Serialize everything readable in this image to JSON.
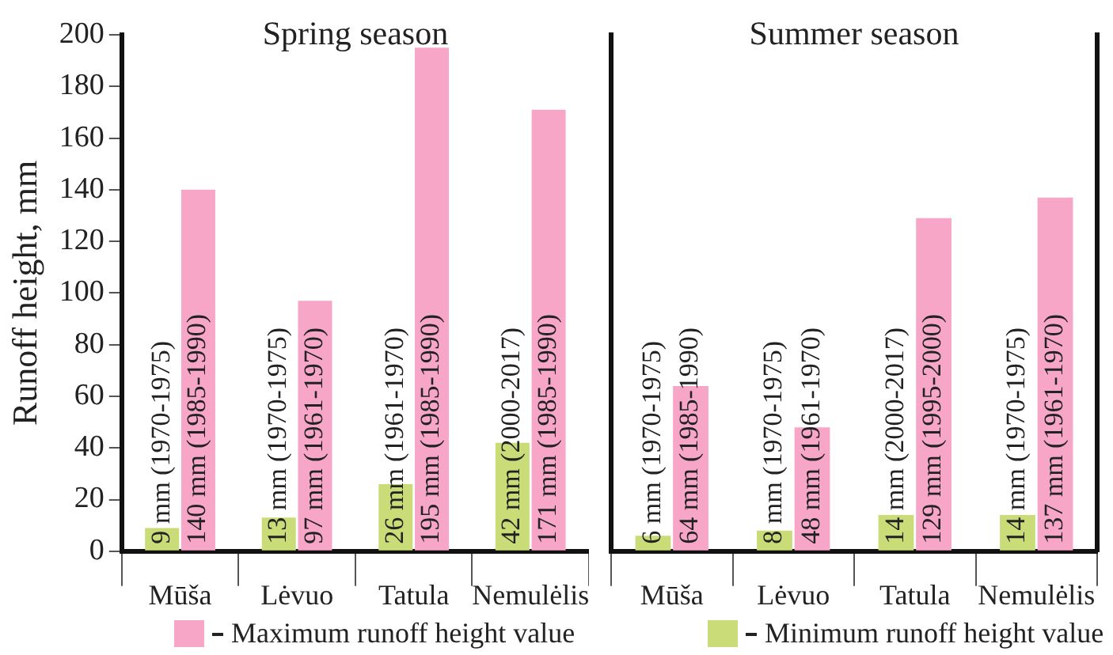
{
  "chart_data": [
    {
      "type": "bar",
      "title": "Spring season",
      "ylabel": "Runoff height, mm",
      "categories": [
        "Mūša",
        "Lėvuo",
        "Tatula",
        "Nemulėlis"
      ],
      "ylim": [
        0,
        200
      ],
      "yticks": [
        0,
        20,
        40,
        60,
        80,
        100,
        120,
        140,
        160,
        180,
        200
      ],
      "grid": false,
      "legend": "bottom",
      "series": [
        {
          "name": "Minimum runoff height value",
          "color": "#c9dc78",
          "values": [
            9,
            13,
            26,
            42
          ],
          "value_labels": [
            "9 mm (1970-1975)",
            "13 mm (1970-1975)",
            "26 mm (1961-1970)",
            "42 mm (2000-2017)"
          ]
        },
        {
          "name": "Maximum runoff height value",
          "color": "#f7a6c8",
          "values": [
            140,
            97,
            195,
            171
          ],
          "value_labels": [
            "140 mm (1985-1990)",
            "97 mm (1961-1970)",
            "195 mm (1985-1990)",
            "171 mm (1985-1990)"
          ]
        }
      ]
    },
    {
      "type": "bar",
      "title": "Summer season",
      "categories": [
        "Mūša",
        "Lėvuo",
        "Tatula",
        "Nemulėlis"
      ],
      "ylim": [
        0,
        200
      ],
      "yticks": [
        0,
        20,
        40,
        60,
        80,
        100,
        120,
        140,
        160,
        180,
        200
      ],
      "grid": false,
      "tick_labels": "x",
      "series": [
        {
          "color": "#c9dc78",
          "values": [
            6,
            8,
            14,
            14
          ],
          "value_labels": [
            "6 mm (1970-1975)",
            "8 mm (1970-1975)",
            "14 mm (2000-2017)",
            "14 mm (1970-1975)"
          ]
        },
        {
          "color": "#f7a6c8",
          "values": [
            64,
            48,
            129,
            137
          ],
          "value_labels": [
            "64 mm (1985-1990)",
            "48 mm (1961-1970)",
            "129 mm (1995-2000)",
            "137 mm (1961-1970)"
          ]
        }
      ]
    }
  ]
}
